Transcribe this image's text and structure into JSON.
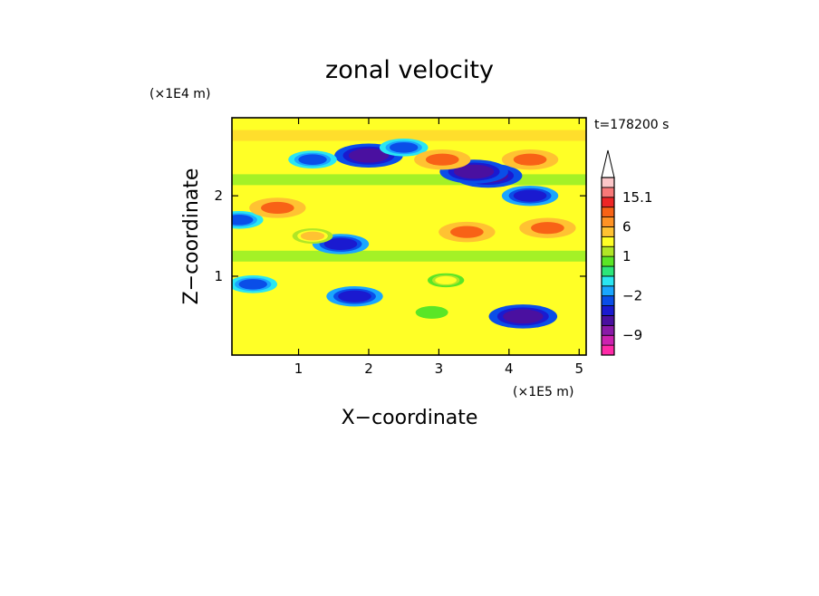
{
  "chart_data": {
    "type": "heatmap",
    "title": "zonal velocity",
    "time_label": "t=178200 s",
    "x_unit": "(×1E5 m)",
    "y_unit": "(×1E4 m)",
    "xlabel": "X−coordinate",
    "ylabel": "Z−coordinate",
    "xlim": [
      0.05,
      5.1
    ],
    "ylim": [
      0.02,
      2.97
    ],
    "x_ticks": [
      1,
      2,
      3,
      4,
      5
    ],
    "y_ticks": [
      1,
      2
    ],
    "colorbar": {
      "labels": [
        "15.1",
        "6",
        "1",
        "−2",
        "−9"
      ],
      "label_values": [
        15.1,
        6,
        1,
        -2,
        -9
      ],
      "levels": [
        -16,
        -12,
        -9,
        -6,
        -4,
        -3,
        -2,
        -1,
        0,
        0.5,
        1,
        2,
        4,
        6,
        8,
        12,
        15.1
      ],
      "colors": [
        "#ff2aa8",
        "#cc22b0",
        "#8a1aa8",
        "#4a10a0",
        "#1a1ad0",
        "#0a4ee8",
        "#1aa6ff",
        "#2ae6f2",
        "#2ce67a",
        "#5ae626",
        "#b0e626",
        "#ffff26",
        "#ffc232",
        "#ff9224",
        "#f86216",
        "#ee2626",
        "#f87878",
        "#fcc6c8"
      ],
      "extend": "max"
    },
    "features": [
      {
        "x": 2.0,
        "z": 2.5,
        "value": -9
      },
      {
        "x": 1.2,
        "z": 2.45,
        "value": -4
      },
      {
        "x": 3.7,
        "z": 2.25,
        "value": -9
      },
      {
        "x": 4.3,
        "z": 2.0,
        "value": -6
      },
      {
        "x": 3.5,
        "z": 2.3,
        "value": -9
      },
      {
        "x": 1.8,
        "z": 0.75,
        "value": -6
      },
      {
        "x": 1.6,
        "z": 1.4,
        "value": -6
      },
      {
        "x": 0.35,
        "z": 0.9,
        "value": -4
      },
      {
        "x": 0.15,
        "z": 1.7,
        "value": -4
      },
      {
        "x": 2.5,
        "z": 2.6,
        "value": -4
      },
      {
        "x": 4.3,
        "z": 2.45,
        "value": 6
      },
      {
        "x": 4.55,
        "z": 1.6,
        "value": 6
      },
      {
        "x": 0.7,
        "z": 1.85,
        "value": 6
      },
      {
        "x": 3.05,
        "z": 2.45,
        "value": 6
      },
      {
        "x": 3.4,
        "z": 1.55,
        "value": 6
      },
      {
        "x": 1.2,
        "z": 1.5,
        "value": 2
      },
      {
        "x": 3.1,
        "z": 0.95,
        "value": 1
      },
      {
        "x": 2.9,
        "z": 0.55,
        "value": 0
      },
      {
        "x": 4.2,
        "z": 0.5,
        "value": -9
      }
    ]
  }
}
